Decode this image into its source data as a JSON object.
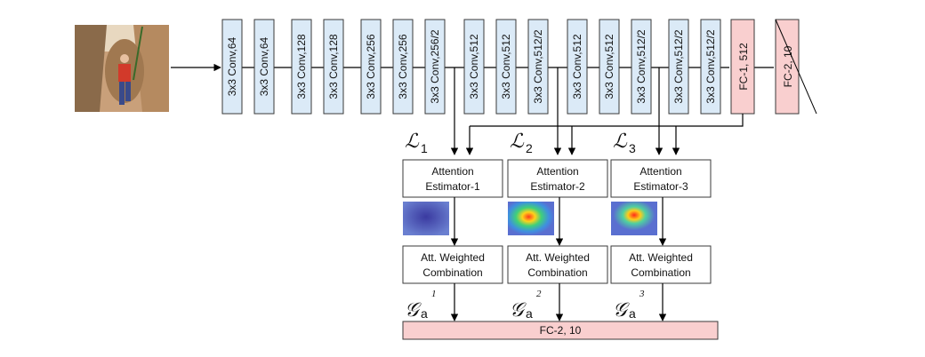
{
  "convs": [
    "3x3 Conv,64",
    "3x3 Conv,64",
    "3x3 Conv,128",
    "3x3 Conv,128",
    "3x3 Conv,256",
    "3x3 Conv,256",
    "3x3 Conv,256/2",
    "3x3 Conv,512",
    "3x3 Conv,512",
    "3x3 Conv,512/2",
    "3x3 Conv,512",
    "3x3 Conv,512",
    "3x3 Conv,512/2",
    "3x3 Conv,512/2",
    "3x3 Conv,512/2"
  ],
  "fc1": "FC-1, 512",
  "fc2_top": "FC-2, 10",
  "fc2_bottom": "FC-2, 10",
  "estimators": [
    {
      "loss_symbol": "ℒ",
      "loss_index": "1",
      "title_line1": "Attention",
      "title_line2": "Estimator-1",
      "combine_line1": "Att. Weighted",
      "combine_line2": "Combination",
      "g_symbol": "𝒢",
      "g_sub": "a",
      "g_sup": "1"
    },
    {
      "loss_symbol": "ℒ",
      "loss_index": "2",
      "title_line1": "Attention",
      "title_line2": "Estimator-2",
      "combine_line1": "Att. Weighted",
      "combine_line2": "Combination",
      "g_symbol": "𝒢",
      "g_sub": "a",
      "g_sup": "2"
    },
    {
      "loss_symbol": "ℒ",
      "loss_index": "3",
      "title_line1": "Attention",
      "title_line2": "Estimator-3",
      "combine_line1": "Att. Weighted",
      "combine_line2": "Combination",
      "g_symbol": "𝒢",
      "g_sub": "a",
      "g_sup": "3"
    }
  ],
  "colors": {
    "conv_fill": "#dbeaf7",
    "fc_fill": "#f9cfcf"
  }
}
